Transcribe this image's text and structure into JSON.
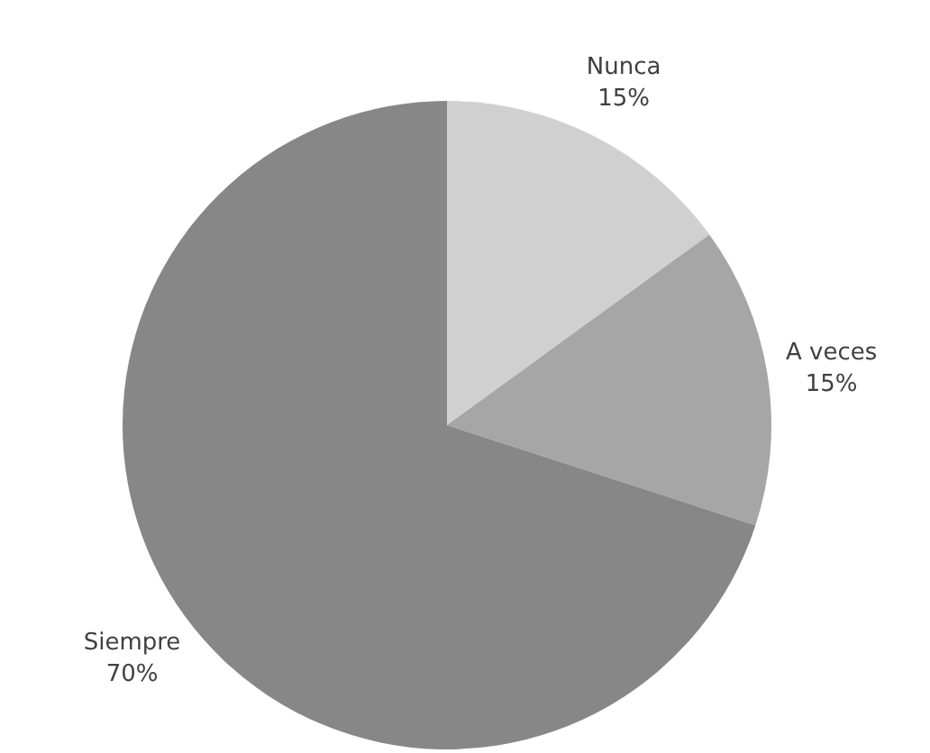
{
  "chart_data": {
    "type": "pie",
    "categories": [
      "Nunca",
      "A veces",
      "Siempre"
    ],
    "values": [
      15,
      15,
      70
    ],
    "colors": [
      "#d0d0d0",
      "#a6a6a6",
      "#878787"
    ],
    "value_labels": [
      "15%",
      "15%",
      "70%"
    ]
  }
}
